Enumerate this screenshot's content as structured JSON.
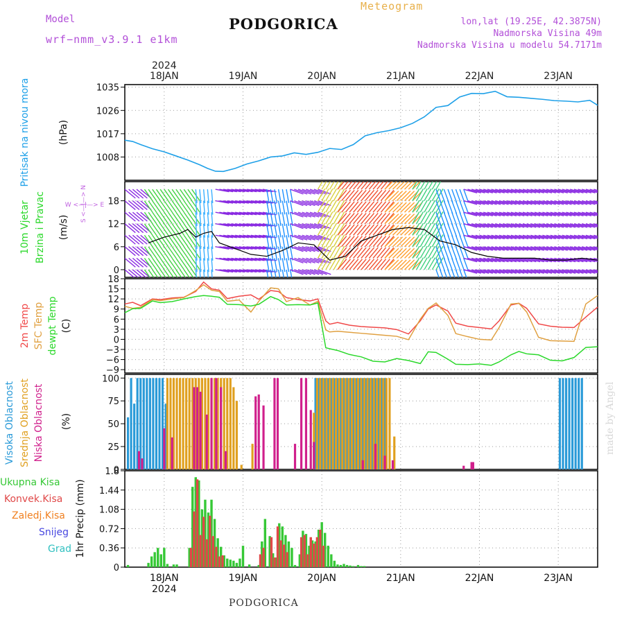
{
  "header": {
    "model_label": "Model",
    "model_name": "wrf−nmm_v3.9.1  e1km",
    "station": "PODGORICA",
    "product": "Meteogram",
    "location": "lon,lat (19.25E, 42.3875N)",
    "elevation": "Nadmorska Visina 49m",
    "model_elevation": "Nadmorska Visina u modelu 54.7171m"
  },
  "footer": {
    "station": "PODGORICA",
    "credit": "made by Angel"
  },
  "colors": {
    "pressure": "#1ea0e8",
    "temp2m": "#f04848",
    "sfc_temp": "#e0a040",
    "dewpoint": "#2ad82a",
    "high_cloud": "#2a9ad8",
    "mid_cloud": "#e0a020",
    "low_cloud": "#d0208c",
    "total_rain": "#36c836",
    "conv_rain": "#e04848",
    "frozen_rain": "#f08020",
    "snow": "#4848e0",
    "hail": "#30c0c0",
    "wind_label": "#c060e0"
  },
  "chart_data": [
    {
      "type": "line",
      "panel": "pressure",
      "ylabel_main": "Pritisak na nivou mora",
      "ylabel_unit": "(hPa)",
      "yticks": [
        1008,
        1017,
        1026,
        1035
      ],
      "ylim": [
        999,
        1036
      ],
      "x_unit": "days from 2024-01-17 12 UTC",
      "top_year": "2024",
      "xticks": [
        {
          "day": 0.5,
          "label": "18JAN"
        },
        {
          "day": 1.5,
          "label": "19JAN"
        },
        {
          "day": 2.5,
          "label": "20JAN"
        },
        {
          "day": 3.5,
          "label": "21JAN"
        },
        {
          "day": 4.5,
          "label": "22JAN"
        },
        {
          "day": 5.5,
          "label": "23JAN"
        }
      ],
      "xlim": [
        0,
        6.0
      ],
      "series": [
        {
          "key": "pressure",
          "x": [
            0,
            0.1,
            0.2,
            0.35,
            0.5,
            0.65,
            0.8,
            0.95,
            1.05,
            1.15,
            1.25,
            1.4,
            1.55,
            1.7,
            1.85,
            2.0,
            2.15,
            2.3,
            2.45,
            2.6,
            2.75,
            2.9,
            3.05,
            3.2,
            3.35,
            3.5,
            3.65,
            3.8,
            3.95,
            4.1,
            4.25,
            4.4,
            4.55,
            4.7,
            4.85,
            5.0,
            5.15,
            5.3,
            5.45,
            5.6,
            5.75,
            5.9,
            6.0
          ],
          "y": [
            1014.5,
            1014,
            1012.8,
            1011.2,
            1010,
            1008.4,
            1006.8,
            1005,
            1003.6,
            1002.5,
            1002.4,
            1003.6,
            1005.3,
            1006.5,
            1008,
            1008.4,
            1009.6,
            1009,
            1009.8,
            1011.3,
            1010.9,
            1012.8,
            1016.2,
            1017.4,
            1018.2,
            1019.3,
            1021,
            1023.5,
            1027.2,
            1027.9,
            1031.2,
            1032.6,
            1032.5,
            1033.4,
            1031.3,
            1031.1,
            1030.7,
            1030.3,
            1029.8,
            1029.6,
            1029.3,
            1029.9,
            1028
          ]
        }
      ]
    },
    {
      "type": "line",
      "panel": "wind",
      "ylabel_main": "10m Vjetar",
      "ylabel_sub": "Brzina i Pravac",
      "ylabel_unit": "(m/s)",
      "compass": "W <—|—> E",
      "compass_v": "S <—|—> N",
      "yticks": [
        0,
        6,
        12,
        18
      ],
      "ylim": [
        -2,
        23
      ],
      "series": [
        {
          "name": "wind speed",
          "x": [
            0.3,
            0.5,
            0.7,
            0.8,
            0.9,
            1.0,
            1.1,
            1.2,
            1.4,
            1.6,
            1.8,
            2.0,
            2.2,
            2.4,
            2.6,
            2.8,
            3.0,
            3.2,
            3.4,
            3.6,
            3.8,
            4.0,
            4.2,
            4.4,
            4.6,
            4.8,
            5.0,
            5.2,
            5.4,
            5.6,
            5.8,
            6.0
          ],
          "y": [
            7,
            8.5,
            9.5,
            10.5,
            8.5,
            9.5,
            10,
            7,
            5.5,
            4,
            3.5,
            5,
            7,
            6.5,
            2.5,
            3.5,
            7.5,
            9,
            10.5,
            11,
            10.5,
            7.5,
            6.5,
            4.5,
            3.5,
            3,
            3,
            3,
            2.5,
            2.5,
            3,
            2.5
          ]
        }
      ]
    },
    {
      "type": "line",
      "panel": "temperature",
      "ylabel_lines": [
        "2m Temp",
        "SFC Temp",
        "dewpt Temp"
      ],
      "ylabel_unit": "(C)",
      "yticks": [
        -9,
        -6,
        -3,
        0,
        3,
        6,
        9,
        12,
        15,
        18
      ],
      "ylim": [
        -10,
        18
      ],
      "series": [
        {
          "key": "temp2m",
          "name": "2m Temp",
          "x": [
            0,
            0.1,
            0.2,
            0.35,
            0.45,
            0.6,
            0.75,
            0.9,
            1.0,
            1.1,
            1.2,
            1.3,
            1.45,
            1.6,
            1.7,
            1.85,
            1.95,
            2.05,
            2.2,
            2.35,
            2.45,
            2.55,
            2.6,
            2.7,
            2.85,
            3.0,
            3.15,
            3.3,
            3.45,
            3.6,
            3.75,
            3.85,
            3.95,
            4.1,
            4.2,
            4.35,
            4.5,
            4.65,
            4.75,
            4.9,
            5.0,
            5.1,
            5.25,
            5.4,
            5.55,
            5.7,
            5.85,
            6.0
          ],
          "y": [
            10.5,
            11,
            10,
            12,
            11.8,
            12.3,
            12.5,
            14.2,
            17,
            15,
            14.6,
            12.1,
            12.8,
            13.2,
            11.9,
            14.5,
            14.2,
            12.4,
            11.8,
            11.4,
            12,
            5.5,
            4.5,
            5,
            4.2,
            3.8,
            3.6,
            3.4,
            2.9,
            1.6,
            5.5,
            9,
            10.2,
            8.4,
            4.8,
            3.9,
            3.5,
            3.1,
            5.5,
            10.2,
            10.7,
            9.2,
            4.6,
            3.9,
            3.6,
            3.5,
            6.6,
            9.6
          ]
        },
        {
          "key": "sfc_temp",
          "name": "SFC Temp",
          "x": [
            0,
            0.1,
            0.2,
            0.35,
            0.45,
            0.6,
            0.75,
            0.9,
            1.0,
            1.1,
            1.2,
            1.3,
            1.45,
            1.6,
            1.7,
            1.85,
            1.95,
            2.05,
            2.2,
            2.35,
            2.45,
            2.55,
            2.6,
            2.7,
            2.85,
            3.0,
            3.15,
            3.3,
            3.45,
            3.6,
            3.75,
            3.85,
            3.95,
            4.1,
            4.2,
            4.35,
            4.5,
            4.65,
            4.75,
            4.9,
            5.0,
            5.1,
            5.25,
            5.4,
            5.55,
            5.7,
            5.85,
            6.0
          ],
          "y": [
            9.8,
            9.2,
            9.5,
            11.8,
            11.5,
            12,
            12.4,
            14.5,
            16.2,
            14.6,
            14.2,
            11.3,
            11.7,
            8.1,
            11.3,
            15.3,
            15,
            11.2,
            12.4,
            10.2,
            11.3,
            2.8,
            2.2,
            2.4,
            2.1,
            1.8,
            1.5,
            1.2,
            0.9,
            -0.1,
            6,
            9.2,
            10.8,
            7.1,
            1.7,
            0.8,
            0,
            -0.2,
            3.5,
            10.5,
            10.7,
            8.1,
            0.6,
            -0.4,
            -0.5,
            -0.6,
            10.5,
            13
          ]
        },
        {
          "key": "dewpoint",
          "name": "dewpt Temp",
          "x": [
            0,
            0.1,
            0.2,
            0.35,
            0.45,
            0.6,
            0.75,
            0.9,
            1.0,
            1.1,
            1.2,
            1.3,
            1.45,
            1.6,
            1.7,
            1.85,
            1.95,
            2.05,
            2.2,
            2.35,
            2.45,
            2.55,
            2.6,
            2.7,
            2.85,
            3.0,
            3.15,
            3.3,
            3.45,
            3.6,
            3.75,
            3.85,
            3.95,
            4.1,
            4.2,
            4.35,
            4.5,
            4.65,
            4.75,
            4.9,
            5.0,
            5.1,
            5.25,
            5.4,
            5.55,
            5.7,
            5.85,
            6.0
          ],
          "y": [
            7.9,
            9.1,
            9.2,
            11.4,
            10.9,
            11.2,
            12,
            12.7,
            13,
            12.8,
            12.5,
            10.4,
            10.3,
            9.9,
            10.4,
            12.7,
            11.8,
            10.2,
            10.3,
            10.2,
            10.8,
            -2.5,
            -2.8,
            -3.3,
            -4.5,
            -5.2,
            -6.5,
            -6.7,
            -5.7,
            -6.3,
            -7.2,
            -3.7,
            -3.9,
            -5.9,
            -7.4,
            -7.5,
            -7.3,
            -7.7,
            -6.7,
            -4.6,
            -3.6,
            -4.3,
            -4.6,
            -6.2,
            -6.4,
            -5.4,
            -2.4,
            -2.2
          ]
        }
      ]
    },
    {
      "type": "bar",
      "panel": "cloud",
      "ylabel_lines": [
        "Visoka Oblacnost",
        "Srednja Oblacnost",
        "Niska Oblacnost"
      ],
      "ylabel_unit": "(%)",
      "yticks": [
        0,
        25,
        50,
        75,
        100
      ],
      "ylim": [
        0,
        104
      ],
      "series": [
        {
          "key": "high_cloud",
          "name": "Visoka Oblacnost",
          "x": [
            0.04,
            0.08,
            0.12,
            0.16,
            0.2,
            0.24,
            0.28,
            0.32,
            0.36,
            0.4,
            0.44,
            0.48,
            0.52,
            2.42,
            2.46,
            2.5,
            2.54,
            2.58,
            2.62,
            2.66,
            2.7,
            2.74,
            2.78,
            2.82,
            2.86,
            2.9,
            2.94,
            2.98,
            3.02,
            3.06,
            3.1,
            3.14,
            3.18,
            3.22,
            3.26,
            3.3,
            5.52,
            5.56,
            5.6,
            5.64,
            5.68,
            5.72,
            5.76,
            5.8
          ],
          "y": [
            57,
            100,
            72,
            100,
            100,
            100,
            100,
            100,
            100,
            100,
            100,
            100,
            72,
            100,
            100,
            100,
            100,
            100,
            100,
            100,
            100,
            100,
            100,
            100,
            100,
            100,
            100,
            100,
            100,
            100,
            100,
            100,
            100,
            100,
            100,
            100,
            100,
            100,
            100,
            100,
            100,
            100,
            100,
            100
          ]
        },
        {
          "key": "mid_cloud",
          "name": "Srednja Oblacnost",
          "x": [
            0.54,
            0.58,
            0.62,
            0.66,
            0.7,
            0.74,
            0.78,
            0.82,
            0.86,
            0.9,
            0.94,
            0.98,
            1.02,
            1.06,
            1.1,
            1.14,
            1.18,
            1.22,
            1.26,
            1.3,
            1.34,
            1.38,
            1.42,
            1.48,
            1.62,
            2.4,
            2.44,
            2.48,
            2.52,
            2.56,
            2.6,
            2.64,
            2.68,
            2.72,
            2.76,
            2.8,
            2.84,
            2.88,
            2.92,
            2.96,
            3.0,
            3.04,
            3.08,
            3.12,
            3.16,
            3.2,
            3.24,
            3.28,
            3.32,
            3.36,
            3.42
          ],
          "y": [
            100,
            100,
            100,
            100,
            100,
            100,
            100,
            100,
            100,
            100,
            100,
            100,
            100,
            100,
            100,
            100,
            100,
            100,
            100,
            100,
            100,
            90,
            75,
            5,
            28,
            62,
            100,
            100,
            100,
            100,
            100,
            100,
            100,
            100,
            100,
            100,
            100,
            100,
            100,
            100,
            100,
            100,
            100,
            100,
            100,
            100,
            100,
            100,
            100,
            100,
            36
          ]
        },
        {
          "key": "low_cloud",
          "name": "Niska Oblacnost",
          "x": [
            0.18,
            0.22,
            0.5,
            0.6,
            0.88,
            0.92,
            0.96,
            1.04,
            1.1,
            1.16,
            1.22,
            1.28,
            1.66,
            1.7,
            1.76,
            1.9,
            1.94,
            2.16,
            2.24,
            2.3,
            2.36,
            2.4,
            3.02,
            3.18,
            3.3,
            3.4,
            4.3,
            4.4,
            4.42
          ],
          "y": [
            20,
            12,
            45,
            35,
            90,
            90,
            85,
            60,
            100,
            100,
            90,
            20,
            80,
            82,
            70,
            100,
            100,
            28,
            100,
            100,
            65,
            30,
            10,
            28,
            15,
            10,
            4,
            8,
            8
          ]
        }
      ]
    },
    {
      "type": "bar",
      "panel": "precipitation",
      "ylabel_main": "1hr Precip (mm)",
      "legend": [
        "Ukupna Kisa",
        "Konvek.Kisa",
        "Zaledj.Kisa",
        "Snijeg",
        "Grad"
      ],
      "yticks": [
        0,
        0.36,
        0.72,
        1.08,
        1.44,
        1.8
      ],
      "ylim": [
        0,
        1.8
      ],
      "bottom_year": "2024",
      "series": [
        {
          "key": "total_rain",
          "name": "Ukupna Kisa",
          "x": [
            0.04,
            0.3,
            0.34,
            0.38,
            0.42,
            0.46,
            0.5,
            0.54,
            0.62,
            0.66,
            0.82,
            0.86,
            0.9,
            0.94,
            0.98,
            1.02,
            1.06,
            1.1,
            1.14,
            1.18,
            1.22,
            1.26,
            1.3,
            1.34,
            1.38,
            1.42,
            1.46,
            1.5,
            1.58,
            1.7,
            1.74,
            1.78,
            1.84,
            1.88,
            1.92,
            1.96,
            2.0,
            2.04,
            2.08,
            2.12,
            2.16,
            2.22,
            2.26,
            2.3,
            2.34,
            2.38,
            2.42,
            2.46,
            2.5,
            2.54,
            2.58,
            2.62,
            2.66,
            2.7,
            2.74,
            2.78,
            2.82,
            2.86,
            2.9,
            2.96,
            3.0,
            3.04
          ],
          "y": [
            0.04,
            0.08,
            0.2,
            0.28,
            0.36,
            0.24,
            0.36,
            0.06,
            0.05,
            0.05,
            0.36,
            1.5,
            1.68,
            1.62,
            1.08,
            1.26,
            1.02,
            1.26,
            0.9,
            0.54,
            0.38,
            0.22,
            0.16,
            0.14,
            0.12,
            0.08,
            0.16,
            0.4,
            0.05,
            0.04,
            0.48,
            0.9,
            0.58,
            0.26,
            0.18,
            0.82,
            0.76,
            0.6,
            0.48,
            0.36,
            0.04,
            0.24,
            0.68,
            0.62,
            0.4,
            0.5,
            0.48,
            0.7,
            0.84,
            0.64,
            0.4,
            0.24,
            0.12,
            0.05,
            0.04,
            0.06,
            0.04,
            0.03,
            0.02,
            0.04,
            0.02,
            0.02
          ]
        },
        {
          "key": "conv_rain",
          "name": "Konvek.Kisa",
          "x": [
            0.84,
            0.88,
            0.92,
            0.96,
            1.0,
            1.04,
            1.08,
            1.12,
            1.16,
            1.2,
            1.24,
            1.72,
            1.76,
            1.86,
            1.9,
            1.94,
            1.98,
            2.02,
            2.06,
            2.24,
            2.28,
            2.32,
            2.36,
            2.4,
            2.44,
            2.48,
            2.52
          ],
          "y": [
            0.36,
            1.04,
            1.64,
            0.6,
            0.94,
            0.52,
            0.96,
            0.58,
            0.38,
            0.2,
            0.22,
            0.24,
            0.36,
            0.56,
            0.18,
            0.76,
            0.5,
            0.42,
            0.28,
            0.56,
            0.6,
            0.24,
            0.56,
            0.44,
            0.56,
            0.7,
            0.4
          ]
        }
      ]
    }
  ]
}
